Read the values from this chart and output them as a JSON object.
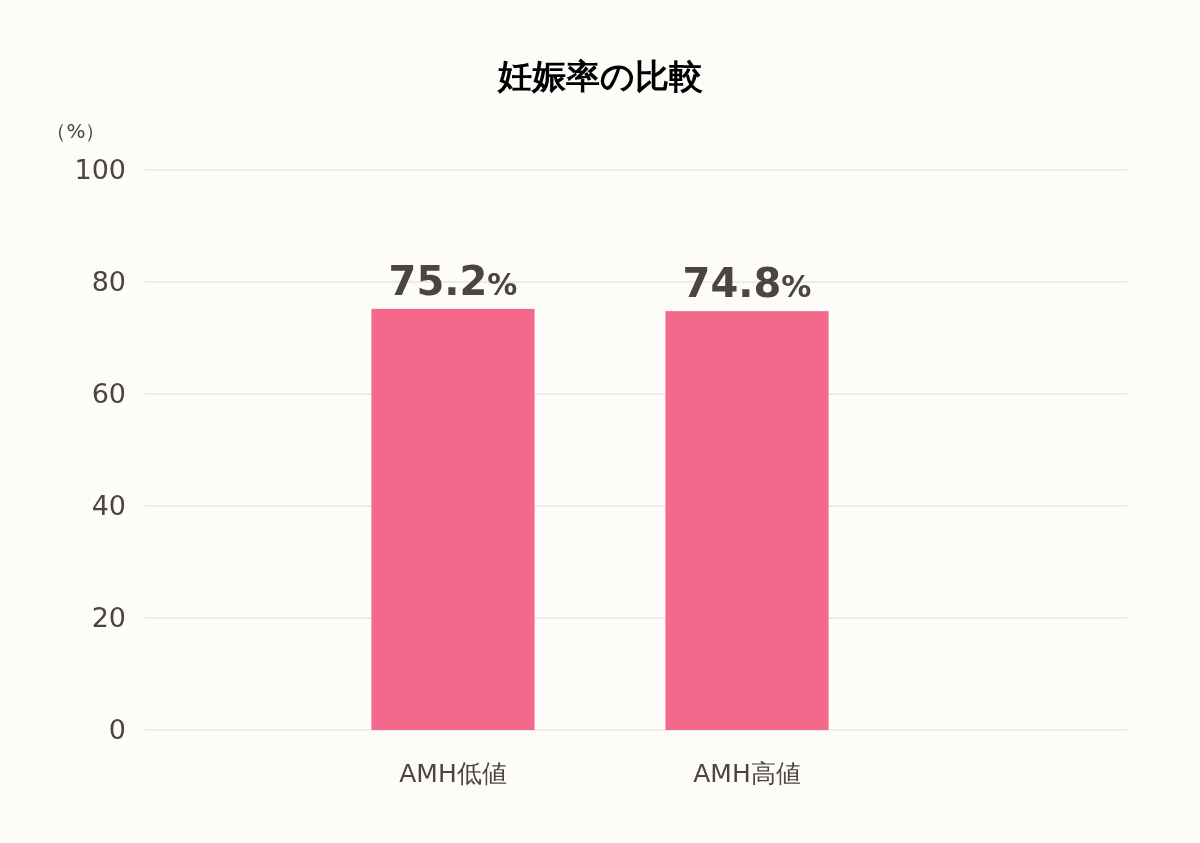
{
  "chart_data": {
    "type": "bar",
    "title": "妊娠率の比較",
    "ylabel": "（%）",
    "categories": [
      "AMH低値",
      "AMH高値"
    ],
    "values": [
      75.2,
      74.8
    ],
    "color": "#f2698b",
    "value_labels": [
      "75.2%",
      "74.8%"
    ],
    "ylim": [
      0,
      100
    ],
    "yticks": [
      0,
      20,
      40,
      60,
      80,
      100
    ],
    "grid": "y"
  }
}
